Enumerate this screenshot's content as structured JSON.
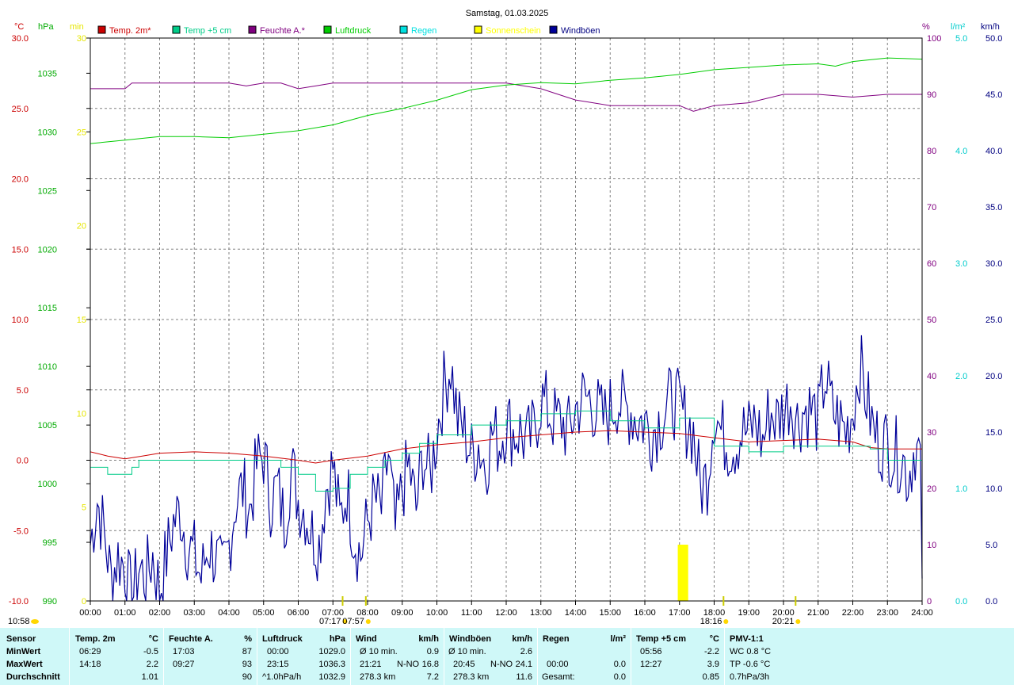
{
  "chart_data": {
    "type": "line",
    "title": "Samstag, 01.03.2025",
    "units": {
      "temp": "°C",
      "pressure": "hPa",
      "sun": "min",
      "humidity": "%",
      "rain": "l/m²",
      "wind": "km/h"
    },
    "legend": [
      {
        "name": "Temp. 2m*",
        "color": "#cc0000"
      },
      {
        "name": "Temp +5 cm",
        "color": "#00cc88"
      },
      {
        "name": "Feuchte A.*",
        "color": "#800080"
      },
      {
        "name": "Luftdruck",
        "color": "#00cc00"
      },
      {
        "name": "Regen",
        "color": "#00e0e0"
      },
      {
        "name": "Sonnenschein",
        "color": "#ffff00"
      },
      {
        "name": "Windböen",
        "color": "#000099"
      }
    ],
    "x_ticks": [
      "00:00",
      "01:00",
      "02:00",
      "03:00",
      "04:00",
      "05:00",
      "06:00",
      "07:00",
      "08:00",
      "09:00",
      "10:00",
      "11:00",
      "12:00",
      "13:00",
      "14:00",
      "15:00",
      "16:00",
      "17:00",
      "18:00",
      "19:00",
      "20:00",
      "21:00",
      "22:00",
      "23:00",
      "24:00"
    ],
    "axes": {
      "temp": {
        "range": [
          -10,
          30
        ],
        "ticks": [
          "30.0",
          "25.0",
          "20.0",
          "15.0",
          "10.0",
          "5.0",
          "0.0",
          "-5.0",
          "-10.0"
        ],
        "color": "#cc0000"
      },
      "pressure": {
        "range": [
          990,
          1038
        ],
        "ticks": [
          "1035",
          "1030",
          "1025",
          "1020",
          "1015",
          "1010",
          "1005",
          "1000",
          "995",
          "990"
        ],
        "color": "#00aa00"
      },
      "sun": {
        "range": [
          0,
          30
        ],
        "ticks": [
          "30",
          "25",
          "20",
          "15",
          "10",
          "5",
          "0"
        ],
        "color": "#e6e600"
      },
      "humidity": {
        "range": [
          0,
          100
        ],
        "ticks": [
          "100",
          "90",
          "80",
          "70",
          "60",
          "50",
          "40",
          "30",
          "20",
          "10",
          "0"
        ],
        "color": "#800080"
      },
      "rain": {
        "range": [
          0,
          5
        ],
        "ticks": [
          "5.0",
          "4.0",
          "3.0",
          "2.0",
          "1.0",
          "0.0"
        ],
        "color": "#00cccc"
      },
      "wind": {
        "range": [
          0,
          50
        ],
        "ticks": [
          "50.0",
          "45.0",
          "40.0",
          "35.0",
          "30.0",
          "25.0",
          "20.0",
          "15.0",
          "10.0",
          "5.0",
          "0.0"
        ],
        "color": "#000080"
      }
    },
    "series": [
      {
        "name": "Temp. 2m*",
        "axis": "temp",
        "x": [
          0,
          0.5,
          1,
          1.5,
          2,
          3,
          4,
          5,
          6,
          6.5,
          7,
          8,
          9,
          10,
          11,
          12,
          13,
          14,
          15,
          16,
          17,
          18,
          19,
          20,
          21,
          22,
          22.5,
          23,
          24
        ],
        "values": [
          0.6,
          0.3,
          0.1,
          0.3,
          0.5,
          0.6,
          0.5,
          0.3,
          0.0,
          -0.2,
          0.0,
          0.3,
          0.8,
          1.1,
          1.3,
          1.6,
          1.8,
          2.0,
          2.1,
          2.0,
          1.9,
          1.6,
          1.3,
          1.4,
          1.5,
          1.3,
          0.9,
          0.8,
          0.8
        ]
      },
      {
        "name": "Temp +5 cm",
        "axis": "temp",
        "x": [
          0,
          0.5,
          1,
          1.2,
          1.4,
          2,
          2.5,
          3,
          5,
          5.5,
          6,
          6.5,
          7,
          7.5,
          8,
          8.5,
          9,
          9.5,
          10,
          10.5,
          11,
          11.5,
          12,
          13,
          14,
          15,
          16,
          17,
          18,
          19,
          20,
          21,
          22,
          22.5,
          23,
          24
        ],
        "values": [
          -0.5,
          -1.0,
          -1.0,
          -0.5,
          0.0,
          0.0,
          0.0,
          0.0,
          0.0,
          -0.5,
          -1.0,
          -2.2,
          -2.0,
          -1.0,
          -0.5,
          0.0,
          0.5,
          1.2,
          1.8,
          1.8,
          2.5,
          2.5,
          2.8,
          3.3,
          3.5,
          2.8,
          2.3,
          3.0,
          1.0,
          0.6,
          1.0,
          1.0,
          1.0,
          0.8,
          0.0,
          0.0
        ]
      },
      {
        "name": "Feuchte A.*",
        "axis": "humidity",
        "x": [
          0,
          1,
          1.2,
          2,
          3,
          4,
          4.5,
          5,
          5.5,
          6,
          6.5,
          7,
          8,
          9,
          10,
          11,
          12,
          13,
          14,
          15,
          16,
          17,
          17.4,
          18,
          19,
          20,
          21,
          22,
          23,
          24
        ],
        "values": [
          91,
          91,
          92,
          92,
          92,
          92,
          91.5,
          92,
          92,
          91,
          91.5,
          92,
          92,
          92,
          92,
          92,
          92,
          91,
          89,
          88,
          88,
          88,
          87,
          88,
          88.5,
          90,
          90,
          89.5,
          90,
          90
        ]
      },
      {
        "name": "Luftdruck",
        "axis": "pressure",
        "x": [
          0,
          1,
          2,
          3,
          4,
          5,
          6,
          7,
          8,
          9,
          10,
          11,
          12,
          13,
          14,
          15,
          16,
          17,
          18,
          19,
          20,
          21,
          21.5,
          22,
          23,
          24
        ],
        "values": [
          1029.0,
          1029.3,
          1029.6,
          1029.6,
          1029.5,
          1029.8,
          1030.1,
          1030.6,
          1031.4,
          1032.0,
          1032.7,
          1033.6,
          1034.0,
          1034.2,
          1034.1,
          1034.4,
          1034.6,
          1034.9,
          1035.3,
          1035.5,
          1035.7,
          1035.8,
          1035.6,
          1036.0,
          1036.3,
          1036.2
        ]
      },
      {
        "name": "Sonnenschein",
        "axis": "sun",
        "type": "bar",
        "x": [
          16.95,
          17.25
        ],
        "values": [
          3,
          3
        ]
      }
    ],
    "wind": {
      "name": "Windböen",
      "axis": "wind",
      "anchors_x": [
        0,
        0.2,
        0.4,
        0.6,
        0.8,
        1.0,
        1.2,
        1.4,
        1.6,
        1.8,
        2.0,
        2.2,
        2.4,
        2.6,
        2.8,
        3.0,
        3.2,
        3.4,
        3.6,
        3.8,
        4.0,
        4.2,
        4.4,
        4.6,
        4.8,
        5.0,
        5.2,
        5.4,
        5.6,
        5.8,
        6.0,
        6.2,
        6.4,
        6.6,
        6.8,
        7.0,
        7.2,
        7.4,
        7.6,
        7.8,
        8.0,
        8.2,
        8.4,
        8.6,
        8.8,
        9.0,
        9.2,
        9.4,
        9.6,
        9.8,
        10.0,
        10.2,
        10.4,
        10.6,
        10.8,
        11.0,
        11.2,
        11.4,
        11.6,
        11.8,
        12.0,
        12.2,
        12.4,
        12.6,
        12.8,
        13.0,
        13.2,
        13.4,
        13.6,
        13.8,
        14.0,
        14.2,
        14.4,
        14.6,
        14.8,
        15.0,
        15.2,
        15.4,
        15.6,
        15.8,
        16.0,
        16.2,
        16.4,
        16.6,
        16.8,
        17.0,
        17.2,
        17.4,
        17.6,
        17.8,
        18.0,
        18.2,
        18.4,
        18.6,
        18.8,
        19.0,
        19.2,
        19.4,
        19.6,
        19.8,
        20.0,
        20.2,
        20.4,
        20.6,
        20.8,
        21.0,
        21.2,
        21.4,
        21.6,
        21.8,
        22.0,
        22.2,
        22.4,
        22.6,
        22.8,
        23.0,
        23.2,
        23.4,
        23.6,
        23.8,
        24.0
      ],
      "anchors_v": [
        5,
        9,
        6,
        2,
        4,
        3,
        0,
        3,
        2,
        4,
        1,
        4,
        7,
        8,
        5,
        4,
        2,
        5,
        4,
        2,
        5,
        9,
        10,
        8,
        12,
        13,
        9,
        10,
        7,
        12,
        9,
        8,
        6,
        5,
        10,
        12,
        7,
        10,
        6,
        4,
        7,
        9,
        8,
        13,
        6,
        10,
        12,
        8,
        13,
        11,
        15,
        19,
        21,
        16,
        15,
        13,
        14,
        12,
        15,
        14,
        16,
        15,
        15,
        14,
        15,
        18,
        17,
        16,
        16,
        15,
        17,
        18,
        18,
        17,
        16,
        17,
        18,
        17,
        17,
        16,
        16,
        15,
        16,
        17,
        18,
        17,
        16,
        15,
        10,
        11,
        17,
        15,
        14,
        14,
        15,
        15,
        16,
        14,
        17,
        16,
        17,
        18,
        16,
        17,
        17,
        16,
        20,
        17,
        16,
        15,
        17,
        21,
        18,
        15,
        14,
        14,
        13,
        13,
        11,
        14,
        12,
        10,
        9,
        8,
        7,
        2
      ]
    },
    "markers": [
      {
        "label": "07:17",
        "hour": 7.28
      },
      {
        "label": "07:57",
        "hour": 7.95
      },
      {
        "label": "18:16",
        "hour": 18.27
      },
      {
        "label": "20:21",
        "hour": 20.35
      }
    ],
    "time_label": "10:58"
  },
  "stats": {
    "headers": {
      "sensor": "Sensor",
      "temp": "Temp. 2m",
      "temp_unit": "°C",
      "hum": "Feuchte A.",
      "hum_unit": "%",
      "press": "Luftdruck",
      "press_unit": "hPa",
      "wind": "Wind",
      "wind_unit": "km/h",
      "gust": "Windböen",
      "gust_unit": "km/h",
      "rain": "Regen",
      "rain_unit": "l/m²",
      "t5": "Temp +5 cm",
      "t5_unit": "°C",
      "pmv": "PMV-1:1"
    },
    "row_labels": [
      "MinWert",
      "MaxWert",
      "Durchschnitt"
    ],
    "min": {
      "temp_time": "06:29",
      "temp_val": "-0.5",
      "hum_time": "17:03",
      "hum_val": "87",
      "press_time": "00:00",
      "press_val": "1029.0",
      "wind_label": "Ø 10 min.",
      "wind_val": "0.9",
      "gust_label": "Ø 10 min.",
      "gust_val": "2.6",
      "t5_time": "05:56",
      "t5_val": "-2.2",
      "pmv": "WC 0.8 °C"
    },
    "max": {
      "temp_time": "14:18",
      "temp_val": "2.2",
      "hum_time": "09:27",
      "hum_val": "93",
      "press_time": "23:15",
      "press_val": "1036.3",
      "wind_time": "21:21",
      "wind_dir": "N-NO",
      "wind_val": "16.8",
      "gust_time": "20:45",
      "gust_dir": "N-NO",
      "gust_val": "24.1",
      "rain_time": "00:00",
      "rain_val": "0.0",
      "t5_time": "12:27",
      "t5_val": "3.9",
      "pmv": "TP -0.6 °C"
    },
    "avg": {
      "temp_val": "1.01",
      "hum_val": "90",
      "press_trend": "^1.0hPa/h",
      "press_val": "1032.9",
      "wind_km": "278.3 km",
      "wind_val": "7.2",
      "gust_km": "278.3 km",
      "gust_val": "11.6",
      "rain_label": "Gesamt:",
      "rain_val": "0.0",
      "t5_val": "0.85",
      "pmv": "0.7hPa/3h"
    }
  }
}
